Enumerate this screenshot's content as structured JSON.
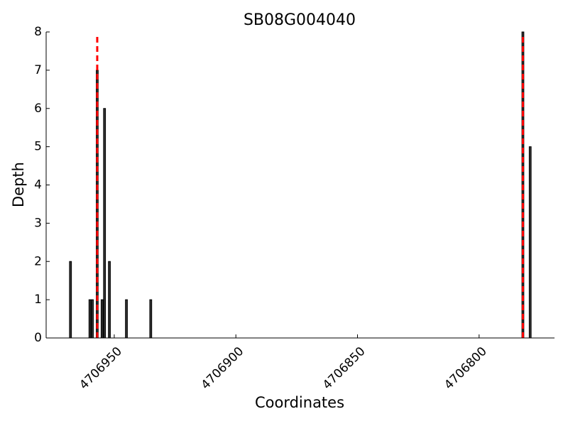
{
  "chart_data": {
    "type": "bar",
    "title": "SB08G004040",
    "x_label": "Coordinates",
    "y_label": "Depth",
    "x": [
      4706968,
      4706960,
      4706959,
      4706957,
      4706955,
      4706954,
      4706952,
      4706945,
      4706935,
      4706782,
      4706779
    ],
    "values": [
      2,
      1,
      1,
      7,
      1,
      6,
      2,
      1,
      1,
      8,
      5
    ],
    "color": "#333333",
    "vlines": [
      4706957,
      4706782
    ],
    "vline_color": "#ff0000",
    "xlim": [
      4706978,
      4706769
    ],
    "xticks": [
      4706950,
      4706900,
      4706850,
      4706800
    ],
    "ylim": [
      0,
      8
    ],
    "yticks": [
      0,
      1,
      2,
      3,
      4,
      5,
      6,
      7,
      8
    ]
  }
}
